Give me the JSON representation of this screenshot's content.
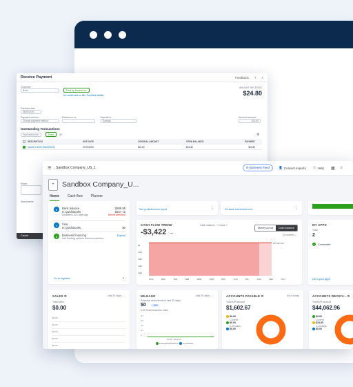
{
  "receive_payment": {
    "title": "Receive Payment",
    "feedback": "Feedback",
    "help": "?",
    "close": "×",
    "customer_label": "Customer",
    "customer_value": "Bobs",
    "find_by_invoice": "Find by invoice no.",
    "no_credit_link": "No credit card on file / Payment details",
    "amount_received_label": "AMOUNT RECEIVED",
    "amount": "$24.80",
    "payment_date_label": "Payment date",
    "payment_date": "06/23/2020",
    "payment_method_label": "Payment method",
    "payment_method_placeholder": "Choose payment method",
    "reference_label": "Reference no.",
    "deposit_to_label": "Deposit to",
    "deposit_to_value": "Savings",
    "amount_received_field_label": "Amount received",
    "amount_received_field": "$24.80",
    "outstanding_title": "Outstanding Transactions",
    "find_invoice_placeholder": "Find invoice No.",
    "filter_label": "Filter",
    "all_label": "All",
    "columns": [
      "DESCRIPTION",
      "DUE DATE",
      "ORIGINAL AMOUNT",
      "OPEN BALANCE",
      "PAYMENT"
    ],
    "rows": [
      {
        "desc": "Invoice # 1009 (06/23/2020)",
        "due": "07/23/2020",
        "orig": "$24.80",
        "open": "$24.80",
        "pay": "$24.80",
        "checked": true
      }
    ],
    "memo_label": "Memo",
    "attachments_label": "Attachments",
    "cancel": "Cancel"
  },
  "dashboard": {
    "company_topbar": "Sandbox Company_US_1",
    "business_feed": "Business Feed",
    "contact_experts": "Contact experts",
    "help": "Help",
    "company_name": "Sandbox Company_U...",
    "tabs": [
      "Home",
      "Cash flow",
      "Planner"
    ],
    "top_links": [
      "See profit and loss report",
      "Fix bank connection error"
    ],
    "bank": {
      "accounts": [
        {
          "name": "Bank balance",
          "sub": "In QuickBooks",
          "note": "Updated 1320 days ago",
          "bank_amt": "$399.95",
          "qb_amt": "$157.72",
          "warning": "Needs attention",
          "icon": "B"
        },
        {
          "name": "Visa",
          "sub": "In QuickBooks",
          "amt": "$0",
          "icon": "V"
        },
        {
          "name": "Business financing",
          "sub": "See funding options from our partners",
          "action": "Explore",
          "icon": "$"
        }
      ],
      "go_to_registers": "Go to registers",
      "page": "1"
    },
    "cashflow": {
      "title": "CASH FLOW TREND",
      "cash_balance_legend": "Cash balance",
      "future_legend": "Future",
      "amount": "-$3,422",
      "money_in_out": "Money in/out",
      "cash_balance_tab": "Cash balance",
      "period": "12 months",
      "y_ticks": [
        "$0",
        "-$1K",
        "-$2K",
        "-$3K",
        "-$4K"
      ],
      "months": [
        "NOV",
        "DEC",
        "JAN",
        "FEB",
        "MAR",
        "APR",
        "MAY",
        "JUN",
        "JUL",
        "AUG",
        "SEP",
        "OCT"
      ],
      "projected_label": "PROJECTED"
    },
    "myapps": {
      "title": "MY APPS",
      "total_label": "Total",
      "total": "2",
      "connected": "Connected",
      "go_to_apps": "Go to your apps"
    },
    "sales": {
      "title": "SALES",
      "period": "Last 30 days",
      "total_label": "Total sales",
      "total": "$0.00",
      "y_ticks": [
        "$0.00",
        "$0.00",
        "$0.00",
        "$0.00",
        "$0.00",
        "$0.00"
      ]
    },
    "mileage": {
      "title": "MILEAGE",
      "period": "Last 30 days",
      "deductions_label": "Potential deductions for last 30 days",
      "amount": "$0",
      "badge": "↑ 10%",
      "miles_label": "0.00 Total business miles",
      "y_ticks": [
        "0.4",
        "0.3",
        "0.2",
        "0.1",
        "0"
      ],
      "range_label": "Jul 29 - Aug 20",
      "legend": [
        "Potential Deductions",
        "For Review"
      ]
    },
    "ap": {
      "title": "ACCOUNTS PAYABLE",
      "as_of": "As of today",
      "total_label": "Total A/P amount",
      "total": "$1,602.67",
      "items": [
        {
          "amt": "$0.00",
          "label": "Current",
          "color": "#f2b600"
        },
        {
          "amt": "$0.00",
          "label": "1-15 days",
          "color": "#2ca01c"
        },
        {
          "amt": "$0.00",
          "label": "",
          "color": "#0077c5"
        }
      ]
    },
    "ar": {
      "title": "ACCOUNTS RECEIV...",
      "total_label": "Total A/R amount",
      "total": "$44,062.96",
      "items": [
        {
          "amt": "$0.00",
          "label": "Current",
          "color": "#2ca01c"
        },
        {
          "amt": "$24.80",
          "label": "1-15 days",
          "color": "#f2b600"
        },
        {
          "amt": "$0.00",
          "label": "",
          "color": "#0077c5"
        }
      ]
    }
  },
  "colors": {
    "qb_green": "#2ca01c",
    "brand_navy": "#0b2a4e",
    "donut_orange": "#ff6a13",
    "cashflow_fill": "#f6a5a5"
  }
}
